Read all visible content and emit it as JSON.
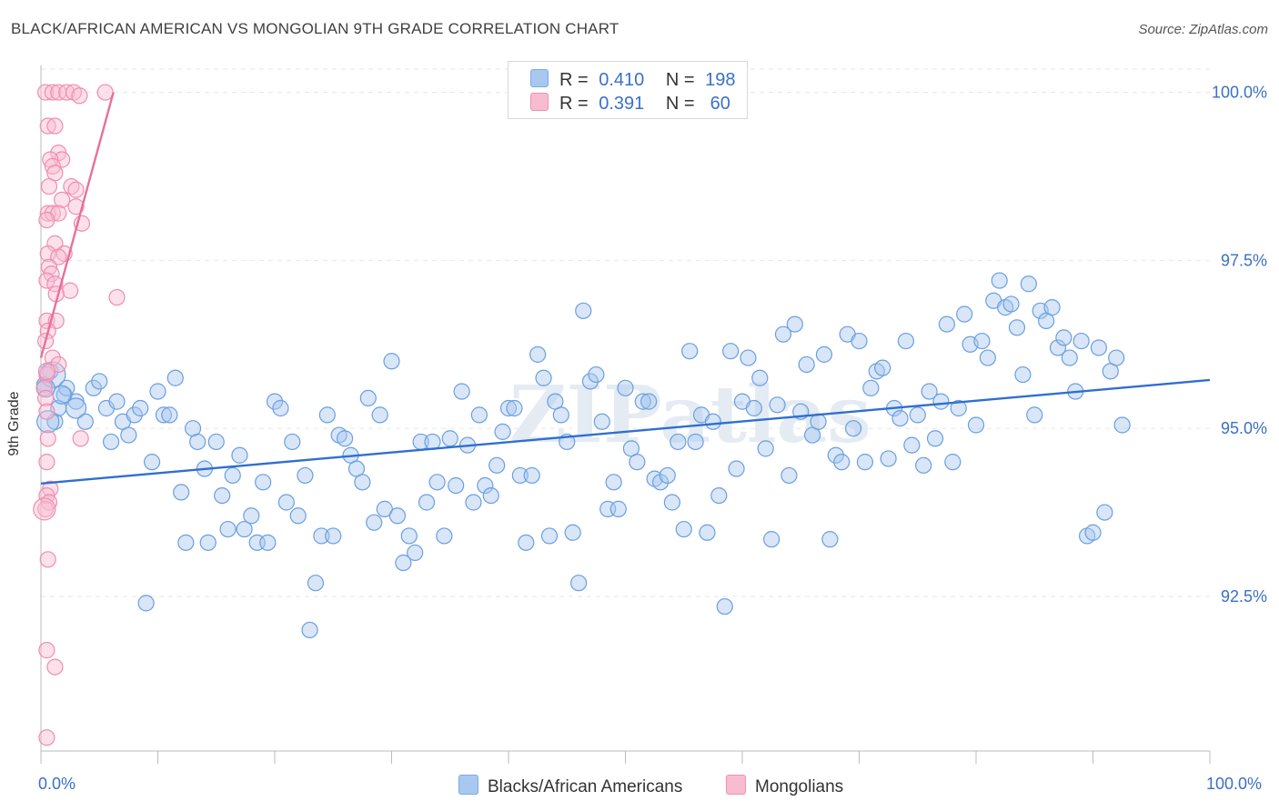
{
  "title": "BLACK/AFRICAN AMERICAN VS MONGOLIAN 9TH GRADE CORRELATION CHART",
  "source": "Source: ZipAtlas.com",
  "watermark": "ZIPatlas",
  "legend": {
    "rows": [
      {
        "r_label": "R =",
        "r_value": "0.410",
        "n_label": "N =",
        "n_value": "198",
        "color": "#a9c8f0",
        "border": "#7aaae6"
      },
      {
        "r_label": "R =",
        "r_value": "0.391",
        "n_label": "N =",
        "n_value": " 60",
        "color": "#f8bcd0",
        "border": "#f090b0"
      }
    ]
  },
  "bottom_legend": [
    {
      "label": "Blacks/African Americans",
      "color": "#a9c8f0",
      "border": "#7aaae6"
    },
    {
      "label": "Mongolians",
      "color": "#f8bcd0",
      "border": "#f090b0"
    }
  ],
  "chart_data": {
    "type": "scatter",
    "title": "BLACK/AFRICAN AMERICAN VS MONGOLIAN 9TH GRADE CORRELATION CHART",
    "xlabel": "",
    "ylabel": "9th Grade",
    "xlim": [
      0,
      100
    ],
    "ylim": [
      90.2,
      100.4
    ],
    "x_tick_labels": [
      "0.0%",
      "100.0%"
    ],
    "y_ticks": [
      92.5,
      95.0,
      97.5,
      100.0
    ],
    "y_tick_labels": [
      "92.5%",
      "95.0%",
      "97.5%",
      "100.0%"
    ],
    "grid": true,
    "series": [
      {
        "name": "Blacks/African Americans",
        "color": "#6a9fe0",
        "fill": "rgba(169,200,240,0.45)",
        "trend": {
          "x": [
            0,
            100
          ],
          "y": [
            94.18,
            95.72
          ],
          "color": "#2f6fcf"
        },
        "points": [
          [
            0.3,
            95.65
          ],
          [
            0.8,
            95.85
          ],
          [
            1.2,
            95.1
          ],
          [
            1.5,
            95.3
          ],
          [
            2.0,
            95.5
          ],
          [
            2.2,
            95.6
          ],
          [
            3.0,
            95.4
          ],
          [
            3.8,
            95.1
          ],
          [
            4.5,
            95.6
          ],
          [
            5.0,
            95.7
          ],
          [
            5.6,
            95.3
          ],
          [
            6.0,
            94.8
          ],
          [
            6.5,
            95.4
          ],
          [
            7.0,
            95.1
          ],
          [
            7.5,
            94.9
          ],
          [
            8.0,
            95.2
          ],
          [
            8.5,
            95.3
          ],
          [
            9.0,
            92.4
          ],
          [
            9.5,
            94.5
          ],
          [
            10.0,
            95.55
          ],
          [
            10.5,
            95.2
          ],
          [
            11.0,
            95.2
          ],
          [
            11.5,
            95.75
          ],
          [
            12.0,
            94.05
          ],
          [
            12.4,
            93.3
          ],
          [
            13.0,
            95.0
          ],
          [
            13.4,
            94.8
          ],
          [
            14.0,
            94.4
          ],
          [
            14.3,
            93.3
          ],
          [
            15.0,
            94.8
          ],
          [
            15.5,
            94.0
          ],
          [
            16.0,
            93.5
          ],
          [
            16.4,
            94.3
          ],
          [
            17.0,
            94.6
          ],
          [
            17.4,
            93.5
          ],
          [
            18.0,
            93.7
          ],
          [
            18.5,
            93.3
          ],
          [
            19.0,
            94.2
          ],
          [
            19.4,
            93.3
          ],
          [
            20.0,
            95.4
          ],
          [
            20.5,
            95.3
          ],
          [
            21.0,
            93.9
          ],
          [
            21.5,
            94.8
          ],
          [
            22.0,
            93.7
          ],
          [
            22.6,
            94.3
          ],
          [
            23.0,
            92.0
          ],
          [
            23.5,
            92.7
          ],
          [
            24.0,
            93.4
          ],
          [
            24.5,
            95.2
          ],
          [
            25.0,
            93.4
          ],
          [
            25.5,
            94.9
          ],
          [
            26.0,
            94.85
          ],
          [
            26.5,
            94.6
          ],
          [
            27.0,
            94.4
          ],
          [
            27.5,
            94.2
          ],
          [
            28.0,
            95.45
          ],
          [
            28.5,
            93.6
          ],
          [
            29.0,
            95.2
          ],
          [
            29.4,
            93.8
          ],
          [
            30.0,
            96.0
          ],
          [
            30.5,
            93.7
          ],
          [
            31.0,
            93.0
          ],
          [
            31.5,
            93.4
          ],
          [
            32.0,
            93.15
          ],
          [
            32.5,
            94.8
          ],
          [
            33.0,
            93.9
          ],
          [
            33.5,
            94.8
          ],
          [
            33.9,
            94.2
          ],
          [
            34.5,
            93.4
          ],
          [
            35.0,
            94.85
          ],
          [
            35.5,
            94.15
          ],
          [
            36.0,
            95.55
          ],
          [
            36.5,
            94.75
          ],
          [
            37.0,
            93.9
          ],
          [
            37.5,
            95.2
          ],
          [
            38.0,
            94.15
          ],
          [
            38.5,
            94.0
          ],
          [
            39.0,
            94.45
          ],
          [
            39.5,
            94.95
          ],
          [
            40.0,
            95.3
          ],
          [
            40.5,
            95.3
          ],
          [
            41.0,
            94.3
          ],
          [
            41.5,
            93.3
          ],
          [
            42.0,
            94.3
          ],
          [
            42.5,
            96.1
          ],
          [
            43.0,
            95.75
          ],
          [
            43.5,
            93.4
          ],
          [
            44.0,
            95.4
          ],
          [
            44.5,
            95.2
          ],
          [
            45.0,
            94.8
          ],
          [
            45.5,
            93.45
          ],
          [
            46.0,
            92.7
          ],
          [
            46.4,
            96.75
          ],
          [
            47.0,
            95.7
          ],
          [
            47.5,
            95.8
          ],
          [
            48.0,
            95.1
          ],
          [
            48.5,
            93.8
          ],
          [
            49.0,
            94.2
          ],
          [
            49.4,
            93.8
          ],
          [
            50.0,
            95.6
          ],
          [
            50.5,
            94.7
          ],
          [
            51.0,
            94.5
          ],
          [
            51.5,
            95.4
          ],
          [
            52.0,
            95.4
          ],
          [
            52.5,
            94.25
          ],
          [
            53.0,
            94.2
          ],
          [
            53.6,
            94.3
          ],
          [
            54.0,
            93.9
          ],
          [
            54.5,
            94.8
          ],
          [
            55.0,
            93.5
          ],
          [
            55.5,
            96.15
          ],
          [
            56.0,
            94.8
          ],
          [
            56.5,
            95.2
          ],
          [
            57.0,
            93.45
          ],
          [
            57.5,
            95.1
          ],
          [
            58.0,
            94.0
          ],
          [
            58.5,
            92.35
          ],
          [
            59.0,
            96.15
          ],
          [
            59.5,
            94.4
          ],
          [
            60.0,
            95.4
          ],
          [
            60.5,
            96.05
          ],
          [
            61.0,
            95.3
          ],
          [
            61.5,
            95.75
          ],
          [
            62.0,
            94.7
          ],
          [
            62.5,
            93.35
          ],
          [
            63.0,
            95.35
          ],
          [
            63.5,
            96.4
          ],
          [
            64.0,
            94.3
          ],
          [
            64.5,
            96.55
          ],
          [
            65.0,
            95.25
          ],
          [
            65.5,
            95.95
          ],
          [
            66.0,
            94.9
          ],
          [
            66.5,
            95.1
          ],
          [
            67.0,
            96.1
          ],
          [
            67.5,
            93.35
          ],
          [
            68.0,
            94.6
          ],
          [
            68.5,
            94.5
          ],
          [
            69.0,
            96.4
          ],
          [
            69.5,
            95.0
          ],
          [
            70.0,
            96.3
          ],
          [
            70.5,
            94.5
          ],
          [
            71.0,
            95.6
          ],
          [
            71.5,
            95.85
          ],
          [
            72.0,
            95.9
          ],
          [
            72.5,
            94.55
          ],
          [
            73.0,
            95.3
          ],
          [
            73.5,
            95.15
          ],
          [
            74.0,
            96.3
          ],
          [
            74.5,
            94.75
          ],
          [
            75.0,
            95.2
          ],
          [
            75.5,
            94.45
          ],
          [
            76.0,
            95.55
          ],
          [
            76.5,
            94.85
          ],
          [
            77.0,
            95.4
          ],
          [
            77.5,
            96.55
          ],
          [
            78.0,
            94.5
          ],
          [
            78.5,
            95.3
          ],
          [
            79.0,
            96.7
          ],
          [
            79.5,
            96.25
          ],
          [
            80.0,
            95.05
          ],
          [
            80.5,
            96.3
          ],
          [
            81.0,
            96.05
          ],
          [
            81.5,
            96.9
          ],
          [
            82.0,
            97.2
          ],
          [
            82.5,
            96.8
          ],
          [
            83.0,
            96.85
          ],
          [
            83.5,
            96.5
          ],
          [
            84.0,
            95.8
          ],
          [
            84.5,
            97.15
          ],
          [
            85.0,
            95.2
          ],
          [
            85.5,
            96.75
          ],
          [
            86.0,
            96.6
          ],
          [
            86.5,
            96.8
          ],
          [
            87.0,
            96.2
          ],
          [
            87.5,
            96.35
          ],
          [
            88.0,
            96.05
          ],
          [
            88.5,
            95.55
          ],
          [
            89.0,
            96.3
          ],
          [
            89.5,
            93.4
          ],
          [
            90.0,
            93.45
          ],
          [
            90.5,
            96.2
          ],
          [
            91.0,
            93.75
          ],
          [
            91.5,
            95.85
          ],
          [
            92.0,
            96.05
          ],
          [
            92.5,
            95.05
          ]
        ],
        "bubbles": [
          [
            1.0,
            95.8,
            14
          ],
          [
            0.6,
            95.1,
            12
          ],
          [
            3.0,
            95.3,
            11
          ],
          [
            1.8,
            95.5,
            10
          ],
          [
            0.4,
            95.6,
            10
          ]
        ]
      },
      {
        "name": "Mongolians",
        "color": "#f08cb0",
        "fill": "rgba(248,188,208,0.45)",
        "trend": {
          "x": [
            0.0,
            6.2
          ],
          "y": [
            96.05,
            100.0
          ],
          "color": "#e8709a"
        },
        "points": [
          [
            0.4,
            100.0
          ],
          [
            1.0,
            100.0
          ],
          [
            1.5,
            100.0
          ],
          [
            2.2,
            100.0
          ],
          [
            2.8,
            100.0
          ],
          [
            3.3,
            99.95
          ],
          [
            5.5,
            100.0
          ],
          [
            0.6,
            99.5
          ],
          [
            1.2,
            99.5
          ],
          [
            1.5,
            99.1
          ],
          [
            1.8,
            99.0
          ],
          [
            0.8,
            99.0
          ],
          [
            1.0,
            98.9
          ],
          [
            1.2,
            98.8
          ],
          [
            0.7,
            98.6
          ],
          [
            2.6,
            98.6
          ],
          [
            3.0,
            98.55
          ],
          [
            1.8,
            98.4
          ],
          [
            3.0,
            98.3
          ],
          [
            0.6,
            98.2
          ],
          [
            1.0,
            98.2
          ],
          [
            1.5,
            98.2
          ],
          [
            3.5,
            98.05
          ],
          [
            0.5,
            98.1
          ],
          [
            1.2,
            97.75
          ],
          [
            0.6,
            97.6
          ],
          [
            2.0,
            97.6
          ],
          [
            1.5,
            97.55
          ],
          [
            0.7,
            97.4
          ],
          [
            0.9,
            97.3
          ],
          [
            0.5,
            97.2
          ],
          [
            1.2,
            97.15
          ],
          [
            2.5,
            97.05
          ],
          [
            1.3,
            97.0
          ],
          [
            6.5,
            96.95
          ],
          [
            0.5,
            96.6
          ],
          [
            1.3,
            96.6
          ],
          [
            0.6,
            96.45
          ],
          [
            0.4,
            96.3
          ],
          [
            1.0,
            96.05
          ],
          [
            1.5,
            95.95
          ],
          [
            0.5,
            95.8
          ],
          [
            0.3,
            95.6
          ],
          [
            0.4,
            95.45
          ],
          [
            0.5,
            95.25
          ],
          [
            3.4,
            94.85
          ],
          [
            0.6,
            94.85
          ],
          [
            0.5,
            94.5
          ],
          [
            0.8,
            94.1
          ],
          [
            0.5,
            94.0
          ],
          [
            0.7,
            93.9
          ],
          [
            0.4,
            93.8
          ],
          [
            0.6,
            93.05
          ],
          [
            0.5,
            91.7
          ],
          [
            1.2,
            91.45
          ],
          [
            0.5,
            90.4
          ]
        ],
        "bubbles": [
          [
            0.3,
            93.8,
            12
          ],
          [
            0.5,
            95.85,
            9
          ]
        ]
      }
    ]
  }
}
